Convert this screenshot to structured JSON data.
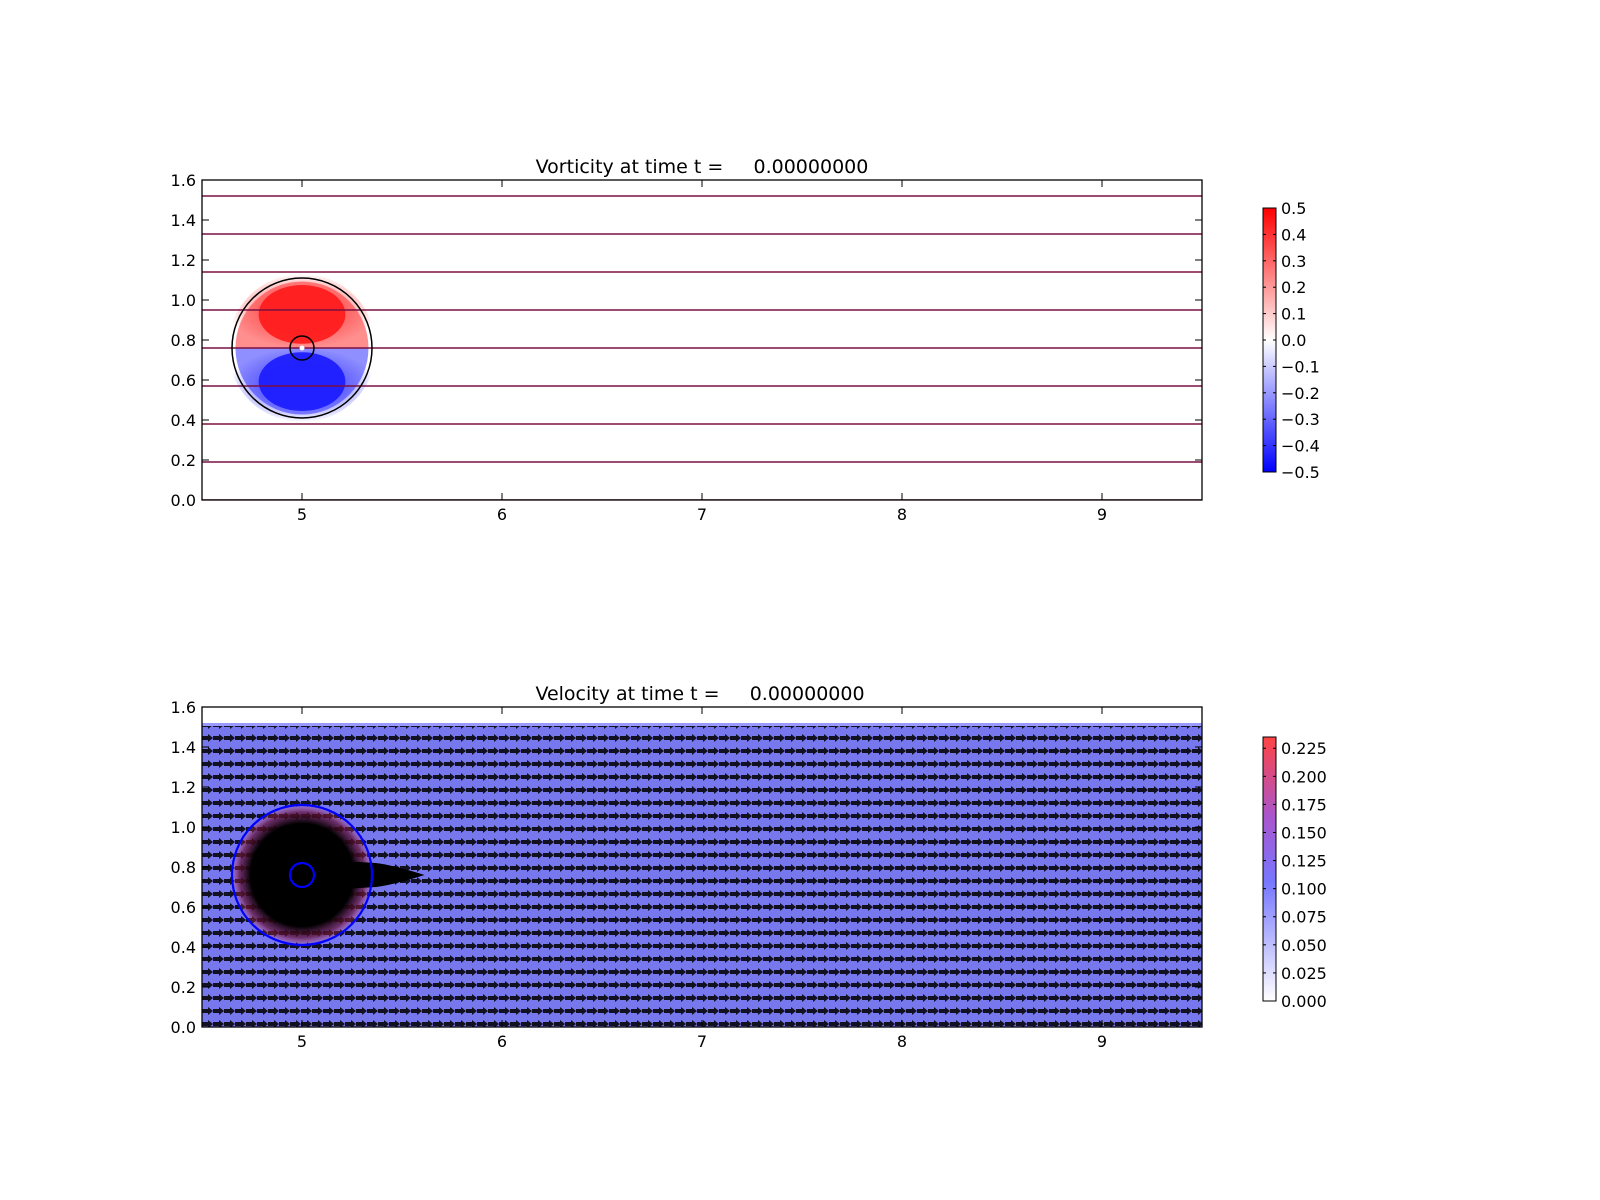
{
  "chart_data": [
    {
      "type": "heatmap",
      "title": "Vorticity at time t =     0.00000000",
      "xlabel": "",
      "ylabel": "",
      "xlim": [
        4.5,
        9.5
      ],
      "ylim": [
        0.0,
        1.6
      ],
      "xticks": [
        "5",
        "6",
        "7",
        "8",
        "9"
      ],
      "yticks": [
        "0.0",
        "0.2",
        "0.4",
        "0.6",
        "0.8",
        "1.0",
        "1.2",
        "1.4",
        "1.6"
      ],
      "grid": false,
      "field": {
        "kind": "dipole",
        "center": [
          5.0,
          0.76
        ],
        "radius": 0.35,
        "upper_lobe_value": 0.5,
        "lower_lobe_value": -0.5
      },
      "streamlines_y": [
        0.0,
        0.19,
        0.38,
        0.57,
        0.76,
        0.95,
        1.14,
        1.33,
        1.52
      ],
      "contours": [
        {
          "center": [
            5.0,
            0.76
          ],
          "radius": 0.35
        },
        {
          "center": [
            5.0,
            0.76
          ],
          "radius": 0.06
        }
      ],
      "colorbar": {
        "min": -0.5,
        "max": 0.5,
        "ticks": [
          "0.5",
          "0.4",
          "0.3",
          "0.2",
          "0.1",
          "0.0",
          "−0.1",
          "−0.2",
          "−0.3",
          "−0.4",
          "−0.5"
        ],
        "colors": [
          "#0000ff",
          "#ffffff",
          "#ff0000"
        ]
      }
    },
    {
      "type": "heatmap",
      "title": "Velocity at time t =     0.00000000",
      "xlabel": "",
      "ylabel": "",
      "xlim": [
        4.5,
        9.5
      ],
      "ylim": [
        0.0,
        1.6
      ],
      "xticks": [
        "5",
        "6",
        "7",
        "8",
        "9"
      ],
      "yticks": [
        "0.0",
        "0.2",
        "0.4",
        "0.6",
        "0.8",
        "1.0",
        "1.2",
        "1.4",
        "1.6"
      ],
      "grid": false,
      "field": {
        "kind": "uniform-flow",
        "y_extent": [
          0.0,
          1.52
        ],
        "background_value": 0.1,
        "vortex_center": [
          5.0,
          0.76
        ],
        "vortex_radius": 0.35,
        "vortex_max_value": 0.225,
        "arrow_spacing": [
          0.033,
          0.038
        ]
      },
      "contours": [
        {
          "center": [
            5.0,
            0.76
          ],
          "radius": 0.35,
          "color": "#0000ff"
        },
        {
          "center": [
            5.0,
            0.76
          ],
          "radius": 0.06,
          "color": "#0000ff"
        }
      ],
      "colorbar": {
        "min": 0.0,
        "max": 0.235,
        "ticks": [
          "0.225",
          "0.200",
          "0.175",
          "0.150",
          "0.125",
          "0.100",
          "0.075",
          "0.050",
          "0.025",
          "0.000"
        ],
        "tick_values": [
          0.225,
          0.2,
          0.175,
          0.15,
          0.125,
          0.1,
          0.075,
          0.05,
          0.025,
          0.0
        ],
        "colors": [
          "#ffffff",
          "#7777ff",
          "#ff4444"
        ]
      }
    }
  ]
}
